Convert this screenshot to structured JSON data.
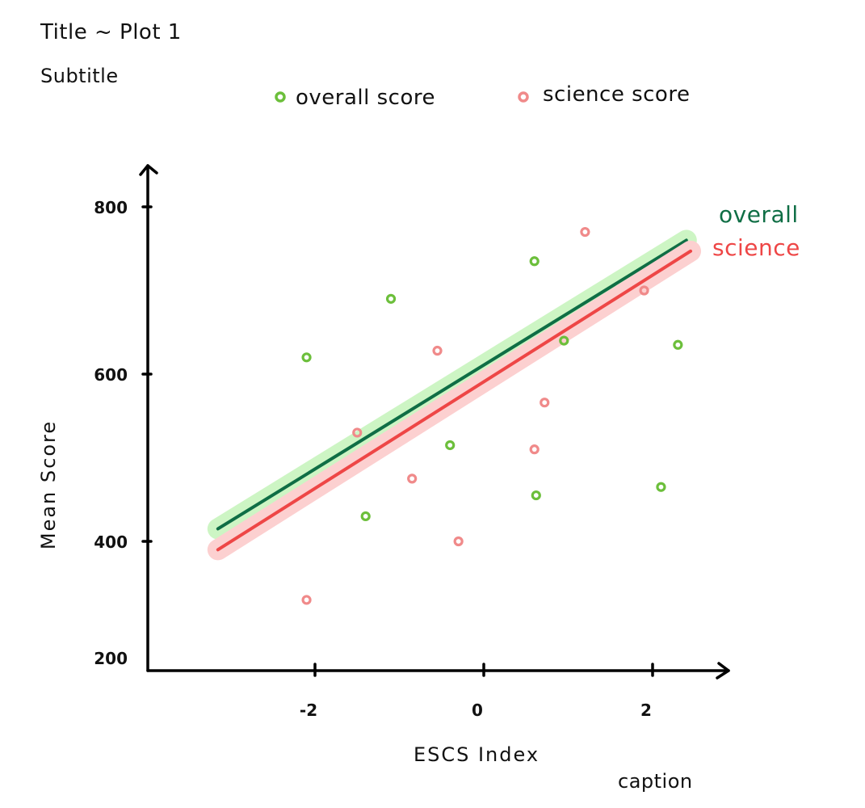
{
  "header": {
    "title": "Title ~ Plot 1",
    "subtitle": "Subtitle"
  },
  "caption": "caption",
  "colors": {
    "overall_point": "#6cbf3b",
    "science_point": "#f08a8a",
    "overall_line": "#0f6e45",
    "overall_band": "#cdf5c4",
    "science_line": "#ee4646",
    "science_band": "#fcd0d0",
    "axis": "#000000"
  },
  "chart_data": {
    "type": "scatter",
    "title": "Title ~ Plot 1",
    "subtitle": "Subtitle",
    "xlabel": "ESCS Index",
    "ylabel": "Mean Score",
    "caption": "caption",
    "xlim": [
      -3.5,
      3
    ],
    "ylim": [
      200,
      800
    ],
    "xticks": [
      {
        "value": -2,
        "label": "-2"
      },
      {
        "value": 0,
        "label": "0"
      },
      {
        "value": 2,
        "label": "2"
      }
    ],
    "yticks": [
      {
        "value": 200,
        "label": "200"
      },
      {
        "value": 400,
        "label": "400"
      },
      {
        "value": 600,
        "label": "600"
      },
      {
        "value": 800,
        "label": "800"
      }
    ],
    "grid": false,
    "legend": {
      "position": "top",
      "entries": [
        "overall score",
        "science score"
      ]
    },
    "series": [
      {
        "name": "overall score",
        "color": "#6cbf3b",
        "points": [
          {
            "x": -2.1,
            "y": 620
          },
          {
            "x": -1.1,
            "y": 690
          },
          {
            "x": -1.4,
            "y": 430
          },
          {
            "x": -0.4,
            "y": 515
          },
          {
            "x": 0.6,
            "y": 735
          },
          {
            "x": 0.95,
            "y": 640
          },
          {
            "x": 0.62,
            "y": 455
          },
          {
            "x": 2.1,
            "y": 465
          },
          {
            "x": 2.3,
            "y": 635
          }
        ],
        "trend": {
          "label": "overall",
          "x": [
            -3.15,
            2.4
          ],
          "y": [
            415,
            760
          ]
        }
      },
      {
        "name": "science score",
        "color": "#f08a8a",
        "points": [
          {
            "x": -2.1,
            "y": 330
          },
          {
            "x": -1.5,
            "y": 530
          },
          {
            "x": -0.85,
            "y": 475
          },
          {
            "x": -0.55,
            "y": 628
          },
          {
            "x": -0.3,
            "y": 400
          },
          {
            "x": 0.6,
            "y": 510
          },
          {
            "x": 0.72,
            "y": 566
          },
          {
            "x": 1.2,
            "y": 770
          },
          {
            "x": 1.9,
            "y": 700
          }
        ],
        "trend": {
          "label": "science",
          "x": [
            -3.15,
            2.45
          ],
          "y": [
            390,
            747
          ]
        }
      }
    ]
  }
}
